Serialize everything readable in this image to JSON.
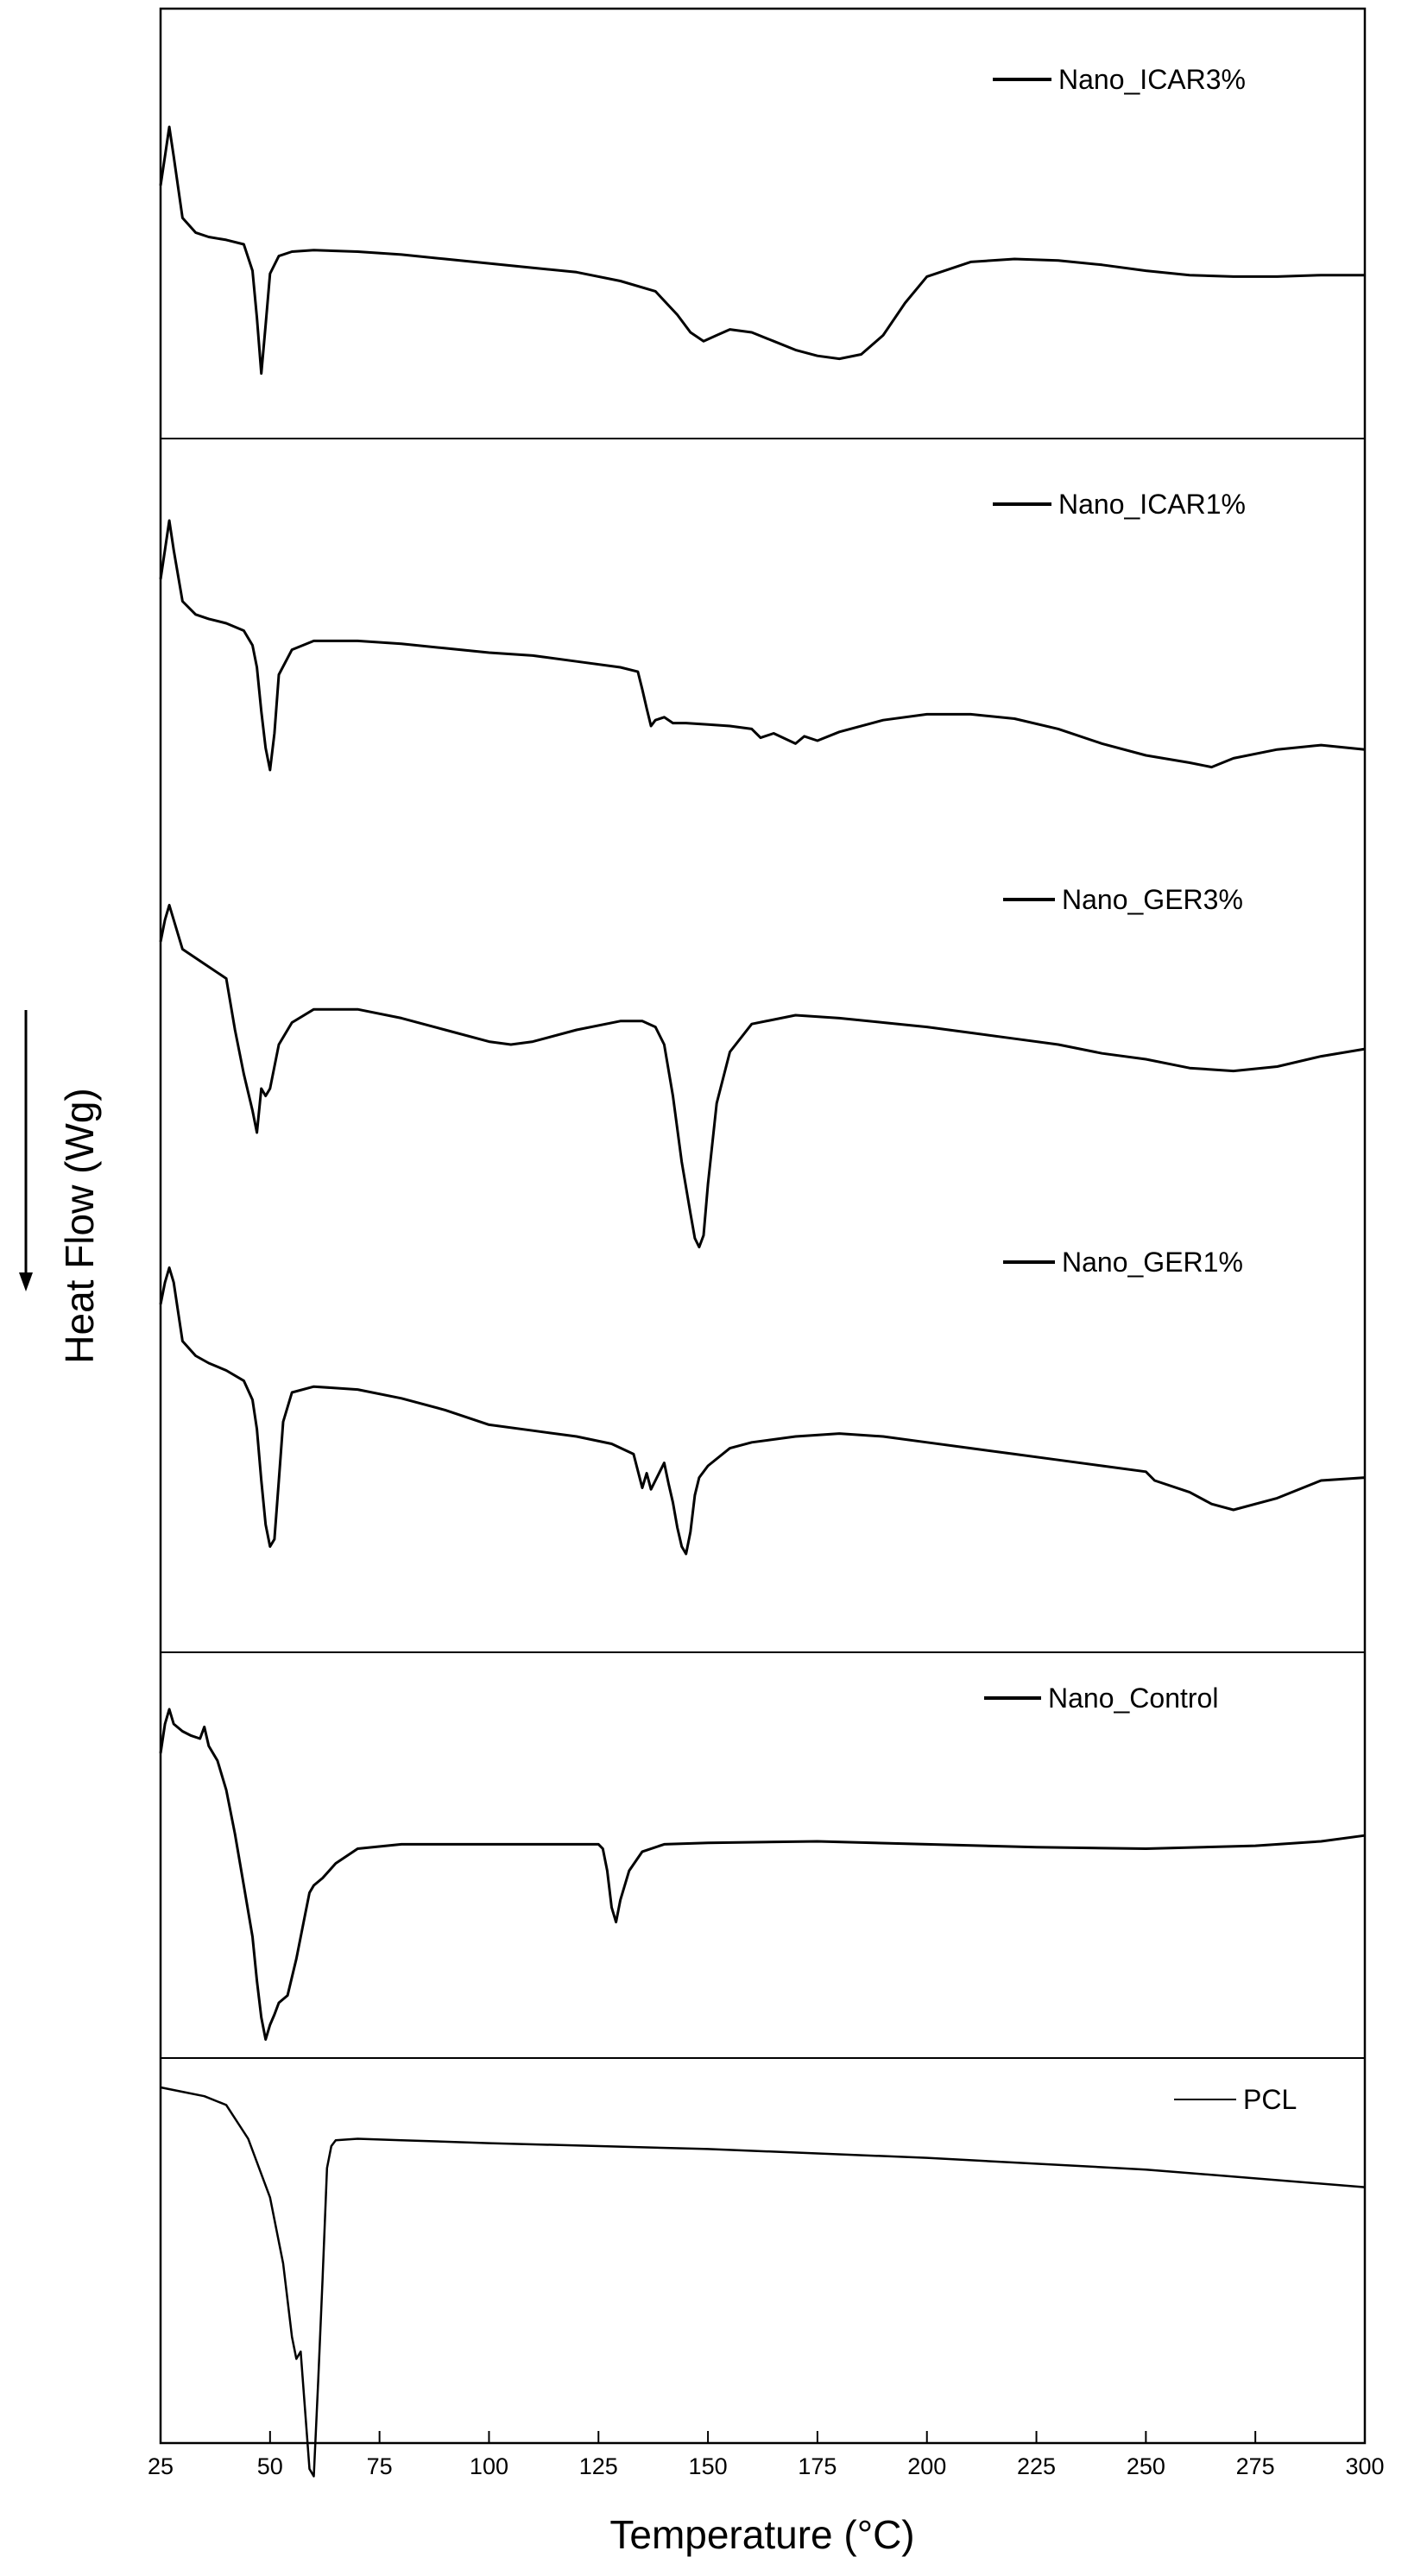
{
  "chart_data": {
    "type": "line",
    "xlabel": "Temperature (°C)",
    "ylabel": "Heat Flow (Wg)",
    "xlim": [
      25,
      300
    ],
    "xticks": [
      "25",
      "50",
      "75",
      "100",
      "125",
      "150",
      "175",
      "200",
      "225",
      "250",
      "275",
      "300"
    ],
    "grid": false,
    "legend_placement": "top-right of each panel",
    "series": [
      {
        "name": "Nano_ICAR3%",
        "panel": 1,
        "x": [
          25,
          26,
          27,
          28,
          30,
          33,
          36,
          40,
          44,
          46,
          47,
          48,
          49,
          50,
          52,
          55,
          60,
          70,
          80,
          90,
          100,
          110,
          120,
          130,
          138,
          143,
          146,
          149,
          152,
          155,
          160,
          165,
          170,
          175,
          180,
          185,
          190,
          195,
          200,
          210,
          220,
          230,
          240,
          250,
          260,
          270,
          280,
          290,
          300
        ],
        "y": [
          0.5,
          0.3,
          0.1,
          0.3,
          0.72,
          0.82,
          0.85,
          0.87,
          0.9,
          1.08,
          1.4,
          1.78,
          1.45,
          1.1,
          0.98,
          0.95,
          0.94,
          0.95,
          0.97,
          1.0,
          1.03,
          1.06,
          1.09,
          1.15,
          1.22,
          1.38,
          1.5,
          1.56,
          1.52,
          1.48,
          1.5,
          1.56,
          1.62,
          1.66,
          1.68,
          1.65,
          1.52,
          1.3,
          1.12,
          1.02,
          1.0,
          1.01,
          1.04,
          1.08,
          1.11,
          1.12,
          1.12,
          1.11,
          1.11
        ]
      },
      {
        "name": "Nano_ICAR1%",
        "panel": 2,
        "x": [
          25,
          26,
          27,
          28,
          30,
          33,
          36,
          40,
          44,
          46,
          47,
          48,
          49,
          50,
          51,
          52,
          55,
          60,
          70,
          80,
          90,
          100,
          110,
          120,
          130,
          134,
          135,
          136,
          137,
          138,
          140,
          142,
          145,
          150,
          155,
          160,
          162,
          165,
          170,
          172,
          175,
          180,
          190,
          200,
          210,
          220,
          230,
          240,
          250,
          260,
          265,
          270,
          280,
          290,
          300
        ],
        "y": [
          0.5,
          0.3,
          0.1,
          0.3,
          0.65,
          0.74,
          0.77,
          0.8,
          0.85,
          0.95,
          1.1,
          1.4,
          1.65,
          1.8,
          1.55,
          1.15,
          0.98,
          0.92,
          0.92,
          0.94,
          0.97,
          1.0,
          1.02,
          1.06,
          1.1,
          1.13,
          1.25,
          1.38,
          1.5,
          1.46,
          1.44,
          1.48,
          1.48,
          1.49,
          1.5,
          1.52,
          1.58,
          1.55,
          1.62,
          1.57,
          1.6,
          1.54,
          1.46,
          1.42,
          1.42,
          1.45,
          1.52,
          1.62,
          1.7,
          1.75,
          1.78,
          1.72,
          1.66,
          1.63,
          1.66
        ]
      },
      {
        "name": "Nano_GER3%",
        "panel": 3,
        "x": [
          25,
          26,
          27,
          28,
          30,
          35,
          40,
          42,
          44,
          46,
          47,
          48,
          49,
          50,
          52,
          55,
          60,
          70,
          80,
          90,
          100,
          105,
          110,
          120,
          130,
          135,
          138,
          140,
          142,
          144,
          146,
          147,
          148,
          149,
          150,
          152,
          155,
          160,
          170,
          180,
          190,
          200,
          210,
          220,
          230,
          240,
          250,
          260,
          270,
          280,
          290,
          300
        ],
        "y": [
          0.3,
          0.15,
          0.05,
          0.15,
          0.35,
          0.45,
          0.55,
          0.9,
          1.2,
          1.45,
          1.6,
          1.3,
          1.35,
          1.3,
          1.0,
          0.85,
          0.76,
          0.76,
          0.82,
          0.9,
          0.98,
          1.0,
          0.98,
          0.9,
          0.84,
          0.84,
          0.88,
          1.0,
          1.35,
          1.8,
          2.15,
          2.32,
          2.38,
          2.3,
          1.95,
          1.4,
          1.05,
          0.86,
          0.8,
          0.82,
          0.85,
          0.88,
          0.92,
          0.96,
          1.0,
          1.06,
          1.1,
          1.16,
          1.18,
          1.15,
          1.08,
          1.03
        ]
      },
      {
        "name": "Nano_GER1%",
        "panel": 4,
        "x": [
          25,
          26,
          27,
          28,
          30,
          33,
          36,
          40,
          44,
          46,
          47,
          48,
          49,
          50,
          51,
          52,
          53,
          55,
          60,
          70,
          80,
          90,
          100,
          110,
          120,
          128,
          133,
          135,
          136,
          137,
          138,
          140,
          141,
          142,
          143,
          144,
          145,
          146,
          147,
          148,
          150,
          155,
          160,
          170,
          180,
          190,
          200,
          210,
          220,
          230,
          240,
          250,
          252,
          260,
          265,
          270,
          280,
          290,
          300
        ],
        "y": [
          0.3,
          0.15,
          0.05,
          0.15,
          0.55,
          0.65,
          0.7,
          0.75,
          0.82,
          0.95,
          1.15,
          1.5,
          1.8,
          1.95,
          1.9,
          1.5,
          1.1,
          0.9,
          0.86,
          0.88,
          0.94,
          1.02,
          1.12,
          1.16,
          1.2,
          1.25,
          1.32,
          1.55,
          1.45,
          1.56,
          1.5,
          1.38,
          1.52,
          1.65,
          1.82,
          1.95,
          2.0,
          1.85,
          1.6,
          1.48,
          1.4,
          1.28,
          1.24,
          1.2,
          1.18,
          1.2,
          1.24,
          1.28,
          1.32,
          1.36,
          1.4,
          1.44,
          1.5,
          1.58,
          1.66,
          1.7,
          1.62,
          1.5,
          1.48
        ]
      },
      {
        "name": "Nano_Control",
        "panel": 5,
        "x": [
          25,
          26,
          27,
          28,
          30,
          32,
          34,
          35,
          36,
          38,
          40,
          42,
          44,
          46,
          47,
          48,
          49,
          50,
          51,
          52,
          54,
          56,
          58,
          59,
          60,
          62,
          65,
          70,
          80,
          90,
          100,
          110,
          120,
          125,
          126,
          127,
          128,
          129,
          130,
          132,
          135,
          140,
          150,
          175,
          200,
          225,
          250,
          275,
          290,
          300
        ],
        "y": [
          0.3,
          0.1,
          0.0,
          0.1,
          0.15,
          0.18,
          0.2,
          0.12,
          0.25,
          0.35,
          0.55,
          0.85,
          1.2,
          1.55,
          1.85,
          2.1,
          2.25,
          2.15,
          2.08,
          2.0,
          1.95,
          1.7,
          1.4,
          1.25,
          1.2,
          1.15,
          1.05,
          0.95,
          0.92,
          0.92,
          0.92,
          0.92,
          0.92,
          0.92,
          0.95,
          1.1,
          1.35,
          1.45,
          1.3,
          1.1,
          0.97,
          0.92,
          0.91,
          0.9,
          0.92,
          0.94,
          0.95,
          0.93,
          0.9,
          0.86
        ]
      },
      {
        "name": "PCL",
        "panel": 6,
        "x": [
          25,
          30,
          35,
          40,
          45,
          50,
          53,
          55,
          56,
          57,
          58,
          59,
          60,
          61,
          62,
          63,
          64,
          65,
          70,
          80,
          100,
          150,
          200,
          250,
          300
        ],
        "y": [
          0.0,
          0.03,
          0.06,
          0.12,
          0.35,
          0.75,
          1.2,
          1.7,
          1.85,
          1.8,
          2.2,
          2.6,
          2.65,
          2.0,
          1.3,
          0.55,
          0.4,
          0.36,
          0.35,
          0.36,
          0.38,
          0.42,
          0.48,
          0.56,
          0.68
        ]
      }
    ]
  }
}
